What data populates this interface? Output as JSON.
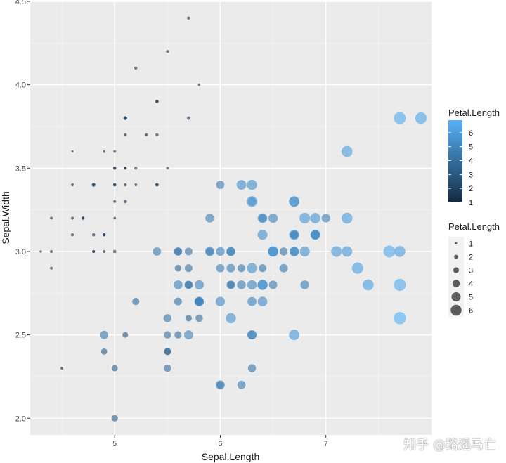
{
  "chart_data": {
    "type": "scatter",
    "title": "",
    "xlabel": "Sepal.Length",
    "ylabel": "Sepal.Width",
    "xlim": [
      4.2,
      8.0
    ],
    "ylim": [
      1.9,
      4.5
    ],
    "xticks": [
      5,
      6,
      7
    ],
    "yticks": [
      2.0,
      2.5,
      3.0,
      3.5,
      4.0,
      4.5
    ],
    "xtick_labels": [
      "5",
      "6",
      "7"
    ],
    "ytick_labels": [
      "2.0",
      "2.5",
      "3.0",
      "3.5",
      "4.0",
      "4.5"
    ],
    "grid": true,
    "legend_position": "right",
    "color_legend": {
      "title": "Petal.Length",
      "labels": [
        "6",
        "5",
        "4",
        "3",
        "2",
        "1"
      ],
      "low_color": "#132B43",
      "high_color": "#56B1F7"
    },
    "size_legend": {
      "title": "Petal.Length",
      "labels": [
        "1",
        "2",
        "3",
        "4",
        "5",
        "6"
      ]
    },
    "points": [
      {
        "x": 5.1,
        "y": 3.5,
        "petal": 1.4
      },
      {
        "x": 4.9,
        "y": 3.0,
        "petal": 1.4
      },
      {
        "x": 4.7,
        "y": 3.2,
        "petal": 1.3
      },
      {
        "x": 4.6,
        "y": 3.1,
        "petal": 1.5
      },
      {
        "x": 5.0,
        "y": 3.6,
        "petal": 1.4
      },
      {
        "x": 5.4,
        "y": 3.9,
        "petal": 1.7
      },
      {
        "x": 4.6,
        "y": 3.4,
        "petal": 1.4
      },
      {
        "x": 5.0,
        "y": 3.4,
        "petal": 1.5
      },
      {
        "x": 4.4,
        "y": 2.9,
        "petal": 1.4
      },
      {
        "x": 4.9,
        "y": 3.1,
        "petal": 1.5
      },
      {
        "x": 5.4,
        "y": 3.7,
        "petal": 1.5
      },
      {
        "x": 4.8,
        "y": 3.4,
        "petal": 1.6
      },
      {
        "x": 4.8,
        "y": 3.0,
        "petal": 1.4
      },
      {
        "x": 4.3,
        "y": 3.0,
        "petal": 1.1
      },
      {
        "x": 5.8,
        "y": 4.0,
        "petal": 1.2
      },
      {
        "x": 5.7,
        "y": 4.4,
        "petal": 1.5
      },
      {
        "x": 5.4,
        "y": 3.9,
        "petal": 1.3
      },
      {
        "x": 5.1,
        "y": 3.5,
        "petal": 1.4
      },
      {
        "x": 5.7,
        "y": 3.8,
        "petal": 1.7
      },
      {
        "x": 5.1,
        "y": 3.8,
        "petal": 1.5
      },
      {
        "x": 5.4,
        "y": 3.4,
        "petal": 1.7
      },
      {
        "x": 5.1,
        "y": 3.7,
        "petal": 1.5
      },
      {
        "x": 4.6,
        "y": 3.6,
        "petal": 1.0
      },
      {
        "x": 5.1,
        "y": 3.3,
        "petal": 1.7
      },
      {
        "x": 4.8,
        "y": 3.4,
        "petal": 1.9
      },
      {
        "x": 5.0,
        "y": 3.0,
        "petal": 1.6
      },
      {
        "x": 5.0,
        "y": 3.4,
        "petal": 1.6
      },
      {
        "x": 5.2,
        "y": 3.5,
        "petal": 1.5
      },
      {
        "x": 5.2,
        "y": 3.4,
        "petal": 1.4
      },
      {
        "x": 4.7,
        "y": 3.2,
        "petal": 1.6
      },
      {
        "x": 4.8,
        "y": 3.1,
        "petal": 1.6
      },
      {
        "x": 5.4,
        "y": 3.4,
        "petal": 1.5
      },
      {
        "x": 5.2,
        "y": 4.1,
        "petal": 1.5
      },
      {
        "x": 5.5,
        "y": 4.2,
        "petal": 1.4
      },
      {
        "x": 4.9,
        "y": 3.1,
        "petal": 1.5
      },
      {
        "x": 5.0,
        "y": 3.2,
        "petal": 1.2
      },
      {
        "x": 5.5,
        "y": 3.5,
        "petal": 1.3
      },
      {
        "x": 4.9,
        "y": 3.6,
        "petal": 1.4
      },
      {
        "x": 4.4,
        "y": 3.0,
        "petal": 1.3
      },
      {
        "x": 5.1,
        "y": 3.4,
        "petal": 1.5
      },
      {
        "x": 5.0,
        "y": 3.5,
        "petal": 1.3
      },
      {
        "x": 4.5,
        "y": 2.3,
        "petal": 1.3
      },
      {
        "x": 4.4,
        "y": 3.2,
        "petal": 1.3
      },
      {
        "x": 5.0,
        "y": 3.5,
        "petal": 1.6
      },
      {
        "x": 5.1,
        "y": 3.8,
        "petal": 1.9
      },
      {
        "x": 4.8,
        "y": 3.0,
        "petal": 1.4
      },
      {
        "x": 5.1,
        "y": 3.8,
        "petal": 1.6
      },
      {
        "x": 4.6,
        "y": 3.2,
        "petal": 1.4
      },
      {
        "x": 5.3,
        "y": 3.7,
        "petal": 1.5
      },
      {
        "x": 5.0,
        "y": 3.3,
        "petal": 1.4
      },
      {
        "x": 7.0,
        "y": 3.2,
        "petal": 4.7
      },
      {
        "x": 6.4,
        "y": 3.2,
        "petal": 4.5
      },
      {
        "x": 6.9,
        "y": 3.1,
        "petal": 4.9
      },
      {
        "x": 5.5,
        "y": 2.3,
        "petal": 4.0
      },
      {
        "x": 6.5,
        "y": 2.8,
        "petal": 4.6
      },
      {
        "x": 5.7,
        "y": 2.8,
        "petal": 4.5
      },
      {
        "x": 6.3,
        "y": 3.3,
        "petal": 4.7
      },
      {
        "x": 4.9,
        "y": 2.4,
        "petal": 3.3
      },
      {
        "x": 6.6,
        "y": 2.9,
        "petal": 4.6
      },
      {
        "x": 5.2,
        "y": 2.7,
        "petal": 3.9
      },
      {
        "x": 5.0,
        "y": 2.0,
        "petal": 3.5
      },
      {
        "x": 5.9,
        "y": 3.0,
        "petal": 4.2
      },
      {
        "x": 6.0,
        "y": 2.2,
        "petal": 4.0
      },
      {
        "x": 6.1,
        "y": 2.9,
        "petal": 4.7
      },
      {
        "x": 5.6,
        "y": 2.9,
        "petal": 3.6
      },
      {
        "x": 6.7,
        "y": 3.1,
        "petal": 4.4
      },
      {
        "x": 5.6,
        "y": 3.0,
        "petal": 4.5
      },
      {
        "x": 5.8,
        "y": 2.7,
        "petal": 4.1
      },
      {
        "x": 6.2,
        "y": 2.2,
        "petal": 4.5
      },
      {
        "x": 5.6,
        "y": 2.5,
        "petal": 3.9
      },
      {
        "x": 5.9,
        "y": 3.2,
        "petal": 4.8
      },
      {
        "x": 6.1,
        "y": 2.8,
        "petal": 4.0
      },
      {
        "x": 6.3,
        "y": 2.5,
        "petal": 4.9
      },
      {
        "x": 6.1,
        "y": 2.8,
        "petal": 4.7
      },
      {
        "x": 6.4,
        "y": 2.9,
        "petal": 4.3
      },
      {
        "x": 6.6,
        "y": 3.0,
        "petal": 4.4
      },
      {
        "x": 6.8,
        "y": 2.8,
        "petal": 4.8
      },
      {
        "x": 6.7,
        "y": 3.0,
        "petal": 5.0
      },
      {
        "x": 6.0,
        "y": 2.9,
        "petal": 4.5
      },
      {
        "x": 5.7,
        "y": 2.6,
        "petal": 3.5
      },
      {
        "x": 5.5,
        "y": 2.4,
        "petal": 3.8
      },
      {
        "x": 5.5,
        "y": 2.4,
        "petal": 3.7
      },
      {
        "x": 5.8,
        "y": 2.7,
        "petal": 3.9
      },
      {
        "x": 6.0,
        "y": 2.7,
        "petal": 5.1
      },
      {
        "x": 5.4,
        "y": 3.0,
        "petal": 4.5
      },
      {
        "x": 6.0,
        "y": 3.4,
        "petal": 4.5
      },
      {
        "x": 6.7,
        "y": 3.1,
        "petal": 4.7
      },
      {
        "x": 6.3,
        "y": 2.3,
        "petal": 4.4
      },
      {
        "x": 5.6,
        "y": 3.0,
        "petal": 4.1
      },
      {
        "x": 5.5,
        "y": 2.5,
        "petal": 4.0
      },
      {
        "x": 5.5,
        "y": 2.6,
        "petal": 4.4
      },
      {
        "x": 6.1,
        "y": 3.0,
        "petal": 4.6
      },
      {
        "x": 5.8,
        "y": 2.6,
        "petal": 4.0
      },
      {
        "x": 5.0,
        "y": 2.3,
        "petal": 3.3
      },
      {
        "x": 5.6,
        "y": 2.7,
        "petal": 4.2
      },
      {
        "x": 5.7,
        "y": 3.0,
        "petal": 4.2
      },
      {
        "x": 5.7,
        "y": 2.9,
        "petal": 4.2
      },
      {
        "x": 6.2,
        "y": 2.9,
        "petal": 4.3
      },
      {
        "x": 5.1,
        "y": 2.5,
        "petal": 3.0
      },
      {
        "x": 5.7,
        "y": 2.8,
        "petal": 4.1
      },
      {
        "x": 6.3,
        "y": 3.3,
        "petal": 6.0
      },
      {
        "x": 5.8,
        "y": 2.7,
        "petal": 5.1
      },
      {
        "x": 7.1,
        "y": 3.0,
        "petal": 5.9
      },
      {
        "x": 6.3,
        "y": 2.9,
        "petal": 5.6
      },
      {
        "x": 6.5,
        "y": 3.0,
        "petal": 5.8
      },
      {
        "x": 7.6,
        "y": 3.0,
        "petal": 6.6
      },
      {
        "x": 4.9,
        "y": 2.5,
        "petal": 4.5
      },
      {
        "x": 7.3,
        "y": 2.9,
        "petal": 6.3
      },
      {
        "x": 6.7,
        "y": 2.5,
        "petal": 5.8
      },
      {
        "x": 7.2,
        "y": 3.6,
        "petal": 6.1
      },
      {
        "x": 6.5,
        "y": 3.2,
        "petal": 5.1
      },
      {
        "x": 6.4,
        "y": 2.7,
        "petal": 5.3
      },
      {
        "x": 6.8,
        "y": 3.0,
        "petal": 5.5
      },
      {
        "x": 5.7,
        "y": 2.5,
        "petal": 5.0
      },
      {
        "x": 5.8,
        "y": 2.8,
        "petal": 5.1
      },
      {
        "x": 6.4,
        "y": 3.2,
        "petal": 5.3
      },
      {
        "x": 6.5,
        "y": 3.0,
        "petal": 5.5
      },
      {
        "x": 7.7,
        "y": 3.8,
        "petal": 6.7
      },
      {
        "x": 7.7,
        "y": 2.6,
        "petal": 6.9
      },
      {
        "x": 6.0,
        "y": 2.2,
        "petal": 5.0
      },
      {
        "x": 6.9,
        "y": 3.2,
        "petal": 5.7
      },
      {
        "x": 5.6,
        "y": 2.8,
        "petal": 4.9
      },
      {
        "x": 7.7,
        "y": 2.8,
        "petal": 6.7
      },
      {
        "x": 6.3,
        "y": 2.7,
        "petal": 4.9
      },
      {
        "x": 6.7,
        "y": 3.3,
        "petal": 5.7
      },
      {
        "x": 7.2,
        "y": 3.2,
        "petal": 6.0
      },
      {
        "x": 6.2,
        "y": 2.8,
        "petal": 4.8
      },
      {
        "x": 6.1,
        "y": 3.0,
        "petal": 4.9
      },
      {
        "x": 6.4,
        "y": 2.8,
        "petal": 5.6
      },
      {
        "x": 7.2,
        "y": 3.0,
        "petal": 5.8
      },
      {
        "x": 7.4,
        "y": 2.8,
        "petal": 6.1
      },
      {
        "x": 7.9,
        "y": 3.8,
        "petal": 6.4
      },
      {
        "x": 6.4,
        "y": 2.8,
        "petal": 5.6
      },
      {
        "x": 6.3,
        "y": 2.8,
        "petal": 5.1
      },
      {
        "x": 6.1,
        "y": 2.6,
        "petal": 5.6
      },
      {
        "x": 7.7,
        "y": 3.0,
        "petal": 6.1
      },
      {
        "x": 6.3,
        "y": 3.4,
        "petal": 5.6
      },
      {
        "x": 6.4,
        "y": 3.1,
        "petal": 5.5
      },
      {
        "x": 6.0,
        "y": 3.0,
        "petal": 4.8
      },
      {
        "x": 6.9,
        "y": 3.1,
        "petal": 5.4
      },
      {
        "x": 6.7,
        "y": 3.1,
        "petal": 5.6
      },
      {
        "x": 6.9,
        "y": 3.1,
        "petal": 5.1
      },
      {
        "x": 5.8,
        "y": 2.7,
        "petal": 5.1
      },
      {
        "x": 6.8,
        "y": 3.2,
        "petal": 5.9
      },
      {
        "x": 6.7,
        "y": 3.3,
        "petal": 5.7
      },
      {
        "x": 6.7,
        "y": 3.0,
        "petal": 5.2
      },
      {
        "x": 6.3,
        "y": 2.5,
        "petal": 5.0
      },
      {
        "x": 6.5,
        "y": 3.0,
        "petal": 5.2
      },
      {
        "x": 6.2,
        "y": 3.4,
        "petal": 5.4
      },
      {
        "x": 5.9,
        "y": 3.0,
        "petal": 5.1
      }
    ]
  },
  "watermark": "知乎 @路遥马亡"
}
